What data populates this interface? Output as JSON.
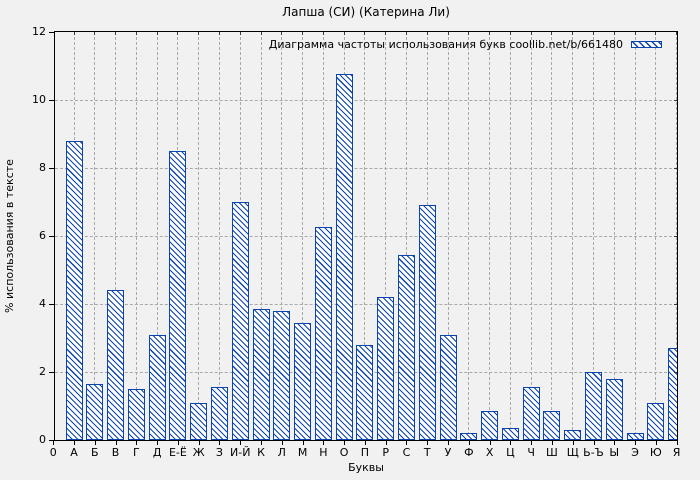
{
  "chart_data": {
    "type": "bar",
    "title": "Лапша (СИ) (Катерина Ли)",
    "legend": "Диаграмма частоты использования букв coollib.net/b/661480",
    "legend_position": "top-right-inside",
    "xlabel": "Буквы",
    "ylabel": "% использования в тексте",
    "origin_label": "0",
    "categories": [
      "А",
      "Б",
      "В",
      "Г",
      "Д",
      "Е-Ё",
      "Ж",
      "З",
      "И-Й",
      "К",
      "Л",
      "М",
      "Н",
      "О",
      "П",
      "Р",
      "С",
      "Т",
      "У",
      "Ф",
      "Х",
      "Ц",
      "Ч",
      "Ш",
      "Щ",
      "Ь-Ъ",
      "Ы",
      "Э",
      "Ю",
      "Я"
    ],
    "values": [
      8.8,
      1.65,
      4.4,
      1.5,
      3.1,
      8.5,
      1.1,
      1.55,
      7.0,
      3.85,
      3.8,
      3.45,
      6.25,
      10.75,
      2.8,
      4.2,
      5.45,
      6.9,
      3.1,
      0.2,
      0.85,
      0.35,
      1.55,
      0.85,
      0.3,
      2.0,
      1.8,
      0.2,
      1.1,
      2.7
    ],
    "yticks": [
      0,
      2,
      4,
      6,
      8,
      10,
      12
    ],
    "ylim": [
      0,
      12
    ],
    "grid": true,
    "bar_border_color": "#0b44ad",
    "bar_fill_color": "#ffffff",
    "hatch_style": "diagonal-down",
    "background_color": "#f1f1f1"
  }
}
